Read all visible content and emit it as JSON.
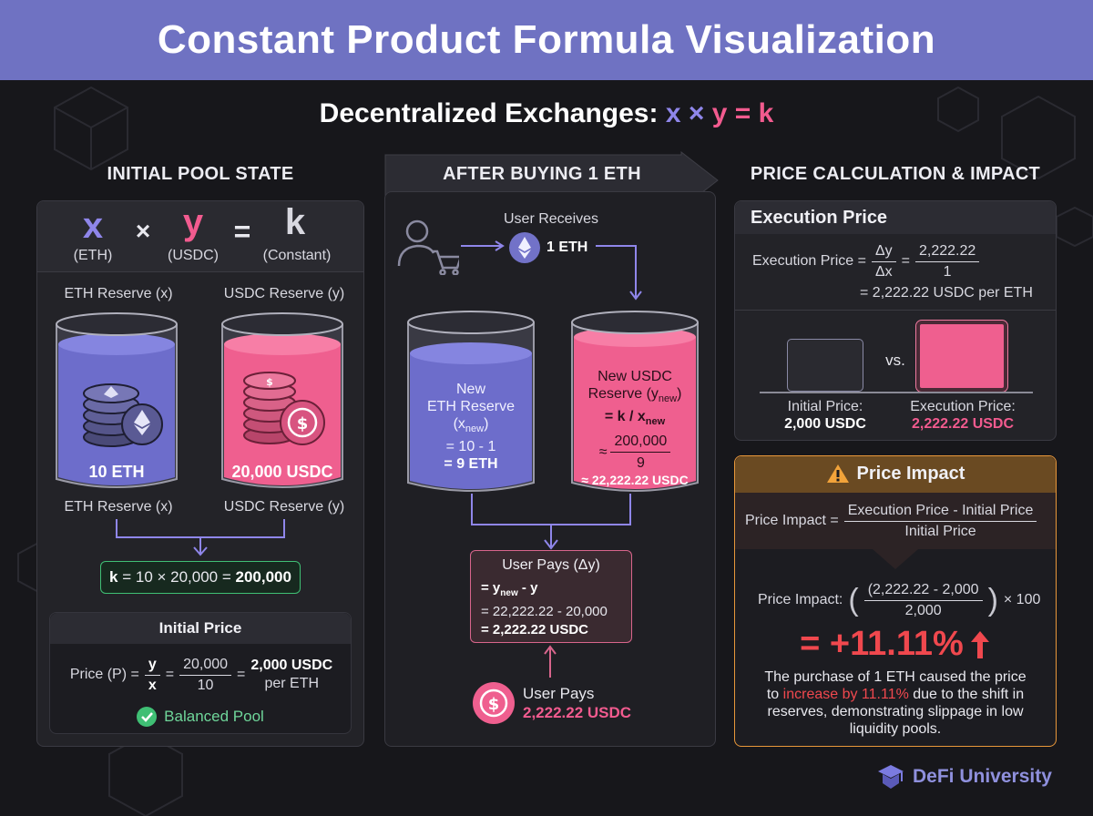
{
  "title": "Constant Product Formula Visualization",
  "subtitle": {
    "prefix": "Decentralized Exchanges:",
    "x": "x",
    "times": "×",
    "y": "y",
    "eq": "=",
    "k": "k"
  },
  "colors": {
    "banner": "#6f72c2",
    "eth": "#7b7be0",
    "usdc": "#f25b8f",
    "green": "#3fbf74",
    "orange": "#e8973a"
  },
  "initial": {
    "heading": "INITIAL POOL STATE",
    "formula": {
      "x": "x",
      "x_sub": "(ETH)",
      "times": "×",
      "y": "y",
      "y_sub": "(USDC)",
      "eq": "=",
      "k": "k",
      "k_sub": "(Constant)"
    },
    "eth_label_top": "ETH Reserve (x)",
    "usdc_label_top": "USDC Reserve (y)",
    "eth_amount": "10 ETH",
    "usdc_amount": "20,000 USDC",
    "eth_label_bottom": "ETH Reserve (x)",
    "usdc_label_bottom": "USDC Reserve (y)",
    "k_calc_prefix": "k",
    "k_calc_mid": " = 10 × 20,000 = ",
    "k_calc_value": "200,000",
    "price_heading": "Initial Price",
    "price_label": "Price (P) =",
    "price_frac_num": "y",
    "price_frac_den": "x",
    "price_eq": "=",
    "price_num": "20,000",
    "price_den": "10",
    "price_eq2": "=",
    "price_value": "2,000 USDC",
    "price_unit": "per ETH",
    "balanced": "Balanced Pool"
  },
  "after": {
    "heading": "AFTER BUYING 1 ETH",
    "receives_label": "User Receives",
    "receives_value": "1 ETH",
    "eth_new_1": "New",
    "eth_new_2": "ETH Reserve",
    "eth_new_3": "(x",
    "eth_new_3_sub": "new",
    "eth_new_3_end": ")",
    "eth_new_4": "= 10 - 1",
    "eth_new_5": "= 9 ETH",
    "usdc_new_1": "New USDC",
    "usdc_new_2": "Reserve (y",
    "usdc_new_2_sub": "new",
    "usdc_new_2_end": ")",
    "usdc_new_3": "= k / x",
    "usdc_new_3_sub": "new",
    "usdc_new_approx": "≈",
    "usdc_new_num": "200,000",
    "usdc_new_den": "9",
    "usdc_new_5": "≈ 22,222.22 USDC",
    "pays_title": "User Pays (Δy)",
    "pays_l1": "= y",
    "pays_l1_sub": "new",
    "pays_l1_end": " - y",
    "pays_l2": "= 22,222.22 - 20,000",
    "pays_l3": "= 2,222.22 USDC",
    "user_pays_label": "User Pays",
    "user_pays_value": "2,222.22 USDC"
  },
  "calc": {
    "heading": "PRICE CALCULATION & IMPACT",
    "exec_heading": "Execution Price",
    "exec_label": "Execution Price =",
    "exec_frac_num": "Δy",
    "exec_frac_den": "Δx",
    "exec_eq": "=",
    "exec_num": "2,222.22",
    "exec_den": "1",
    "exec_result": "= 2,222.22 USDC per ETH",
    "vs": "vs.",
    "initial_price_label": "Initial Price:",
    "initial_price_value": "2,000 USDC",
    "exec_price_label": "Execution Price:",
    "exec_price_value": "2,222.22 USDC",
    "impact_heading": "Price Impact",
    "impact_label": "Price Impact =",
    "impact_num": "Execution Price - Initial Price",
    "impact_den": "Initial Price",
    "impact_label2": "Price Impact:",
    "impact_num2": "(2,222.22 - 2,000",
    "impact_den2": "2,000",
    "impact_times": "× 100",
    "impact_result": "= +11.11%",
    "impact_desc_1": "The purchase of 1 ETH caused the price",
    "impact_desc_2a": "to ",
    "impact_desc_2b": "increase by 11.11%",
    "impact_desc_2c": " due to the shift in",
    "impact_desc_3": "reserves, demonstrating slippage in low",
    "impact_desc_4": "liquidity pools."
  },
  "brand": "DeFi University"
}
